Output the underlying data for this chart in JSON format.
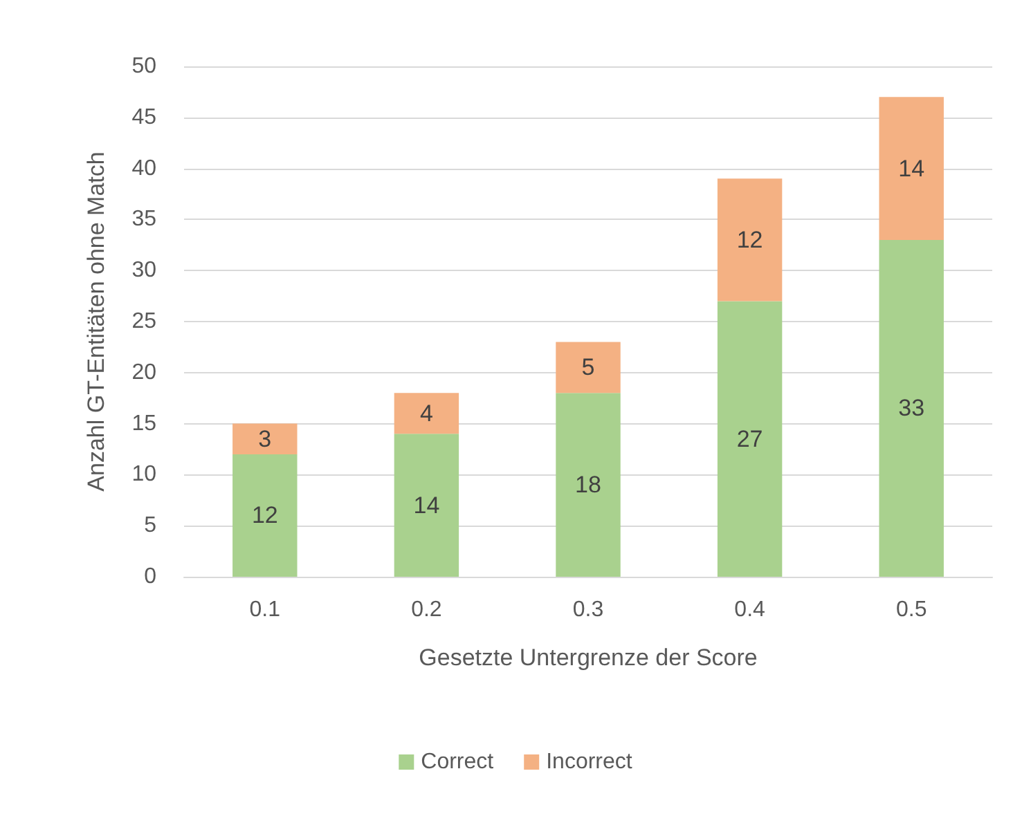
{
  "chart_data": {
    "type": "bar",
    "stacked": true,
    "xlabel": "Gesetzte Untergrenze der Score",
    "ylabel": "Anzahl GT-Entitäten ohne Match",
    "categories": [
      "0.1",
      "0.2",
      "0.3",
      "0.4",
      "0.5"
    ],
    "series": [
      {
        "name": "Correct",
        "color": "#a9d18e",
        "values": [
          12,
          14,
          18,
          27,
          33
        ]
      },
      {
        "name": "Incorrect",
        "color": "#f4b183",
        "values": [
          3,
          4,
          5,
          12,
          14
        ]
      }
    ],
    "ylim": [
      0,
      50
    ],
    "yticks": [
      0,
      5,
      10,
      15,
      20,
      25,
      30,
      35,
      40,
      45,
      50
    ],
    "grid": "y",
    "legend": "bottom",
    "data_labels": true
  }
}
